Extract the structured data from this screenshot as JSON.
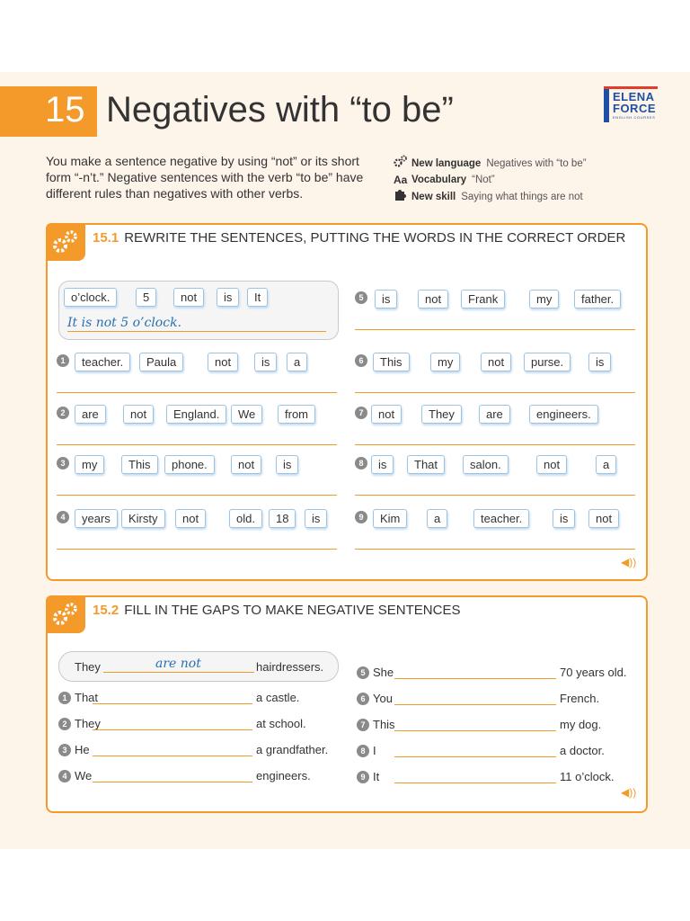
{
  "header": {
    "unit_number": "15",
    "title": "Negatives with “to be”",
    "logo_line1": "ELENA",
    "logo_line2": "FORCE",
    "logo_line3": "ENGLISH COURSES"
  },
  "intro": "You make a sentence negative by using “not” or its short form “-n’t.” Negative sentences with the verb “to be” have different rules than negatives with other verbs.",
  "meta": [
    {
      "icon": "gears-icon",
      "label": "New language",
      "value": "Negatives with “to be”"
    },
    {
      "icon": "vocabulary-icon",
      "glyph": "Aa",
      "label": "Vocabulary",
      "value": "“Not”"
    },
    {
      "icon": "puzzle-icon",
      "label": "New skill",
      "value": "Saying what things are not"
    }
  ],
  "ex1": {
    "number": "15.1",
    "heading": "REWRITE THE SENTENCES, PUTTING THE WORDS IN THE CORRECT ORDER",
    "example_words": [
      "o’clock.",
      "5",
      "not",
      "is",
      "It"
    ],
    "example_answer": "It is not 5 o’clock.",
    "items": [
      {
        "n": "1",
        "words": [
          "teacher.",
          "Paula",
          "not",
          "is",
          "a"
        ]
      },
      {
        "n": "2",
        "words": [
          "are",
          "not",
          "England.",
          "We",
          "from"
        ]
      },
      {
        "n": "3",
        "words": [
          "my",
          "This",
          "phone.",
          "not",
          "is"
        ]
      },
      {
        "n": "4",
        "words": [
          "years",
          "Kirsty",
          "not",
          "old.",
          "18",
          "is"
        ]
      },
      {
        "n": "5",
        "words": [
          "is",
          "not",
          "Frank",
          "my",
          "father."
        ]
      },
      {
        "n": "6",
        "words": [
          "This",
          "my",
          "not",
          "purse.",
          "is"
        ]
      },
      {
        "n": "7",
        "words": [
          "not",
          "They",
          "are",
          "engineers."
        ]
      },
      {
        "n": "8",
        "words": [
          "is",
          "That",
          "salon.",
          "not",
          "a"
        ]
      },
      {
        "n": "9",
        "words": [
          "Kim",
          "a",
          "teacher.",
          "is",
          "not"
        ]
      }
    ]
  },
  "ex2": {
    "number": "15.2",
    "heading": "FILL IN THE GAPS TO MAKE NEGATIVE SENTENCES",
    "example": {
      "start": "They",
      "answer": "are not",
      "end": "hairdressers."
    },
    "items": [
      {
        "n": "1",
        "start": "That",
        "end": "a castle."
      },
      {
        "n": "2",
        "start": "They",
        "end": "at school."
      },
      {
        "n": "3",
        "start": "He",
        "end": "a grandfather."
      },
      {
        "n": "4",
        "start": "We",
        "end": "engineers."
      },
      {
        "n": "5",
        "start": "She",
        "end": "70 years old."
      },
      {
        "n": "6",
        "start": "You",
        "end": "French."
      },
      {
        "n": "7",
        "start": "This",
        "end": "my dog."
      },
      {
        "n": "8",
        "start": "I",
        "end": "a doctor."
      },
      {
        "n": "9",
        "start": "It",
        "end": "11 o’clock."
      }
    ]
  },
  "colors": {
    "accent": "#f39a2b",
    "chip_border": "#9cc3e2",
    "handwriting": "#2a6fb0"
  }
}
